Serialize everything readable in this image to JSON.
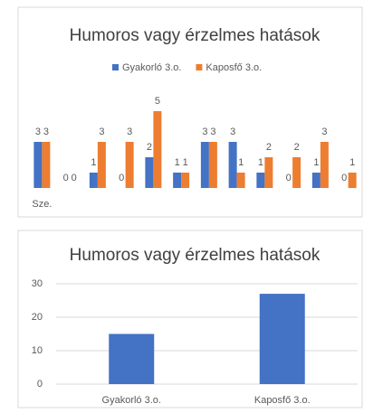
{
  "chart_data": [
    {
      "type": "bar",
      "title": "Humoros vagy érzelmes hatások",
      "categories": [
        "Sze.",
        null,
        null,
        null,
        null,
        null,
        null,
        null,
        null,
        null,
        null,
        null
      ],
      "series": [
        {
          "name": "Gyakorló 3.o.",
          "color": "#4472c4",
          "values": [
            3,
            0,
            1,
            0,
            2,
            1,
            3,
            3,
            1,
            0,
            1,
            0
          ]
        },
        {
          "name": "Kaposfő 3.o.",
          "color": "#ed7d31",
          "values": [
            3,
            0,
            3,
            3,
            5,
            1,
            3,
            1,
            2,
            2,
            3,
            1
          ]
        }
      ],
      "legend": "top"
    },
    {
      "type": "bar",
      "title": "Humoros vagy érzelmes hatások",
      "categories": [
        "Gyakorló 3.o.",
        "Kaposfő 3.o."
      ],
      "values": [
        15,
        27
      ],
      "color": "#4472c4",
      "ylim": [
        0,
        30
      ],
      "yticks": [
        0,
        10,
        20,
        30
      ],
      "grid": true
    }
  ]
}
